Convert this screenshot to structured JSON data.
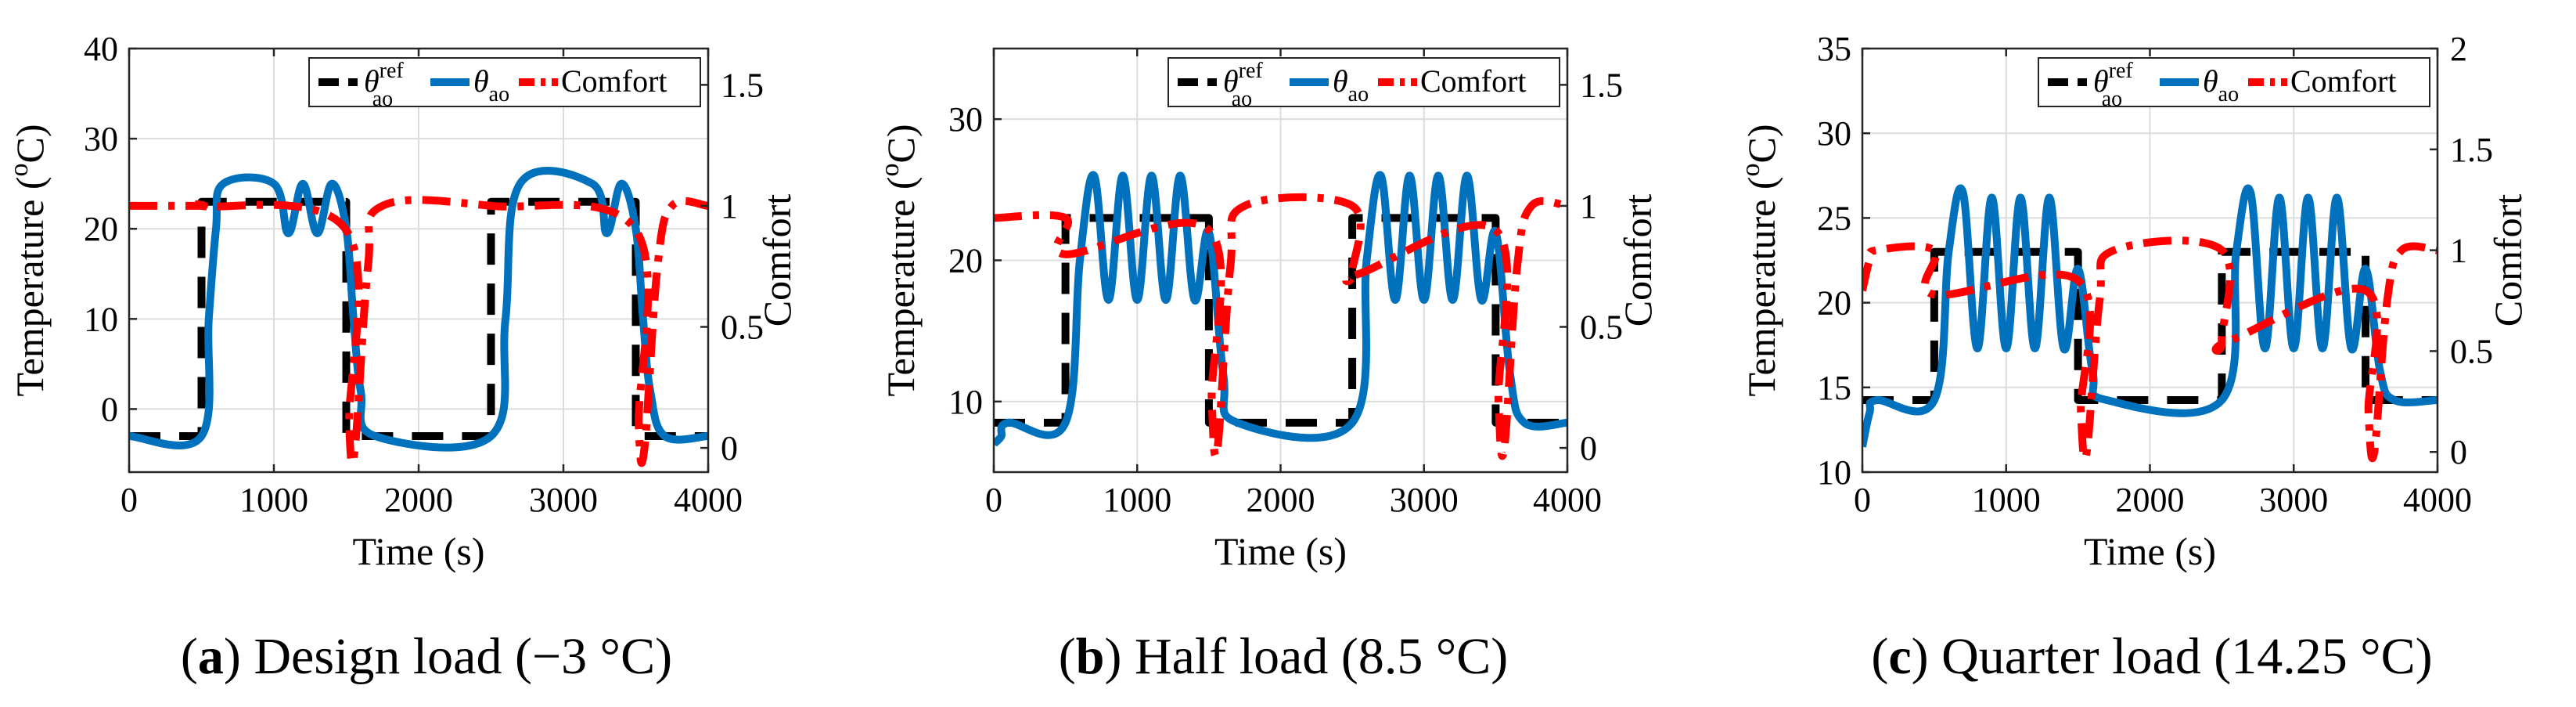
{
  "legend": {
    "ref_symbol": "θ",
    "ref_superscript": "ref",
    "ref_subscript": "ao",
    "ao_symbol": "θ",
    "ao_subscript": "ao",
    "comfort_label": "Comfort"
  },
  "colors": {
    "reference": "#000000",
    "temperature": "#0072BD",
    "comfort": "#FF0000",
    "grid": "#dcdcdc"
  },
  "chart_data": [
    {
      "type": "line",
      "letter": "a",
      "caption": "Design load (−3 °C)",
      "xlabel": "Time (s)",
      "ylabel": "Temperature (°C)",
      "ylabel_left": "Temperature (",
      "ylabel_sup": "o",
      "ylabel_right": "C)",
      "y2label": "Comfort",
      "xlim": [
        0,
        4000
      ],
      "ylim": [
        -7,
        40
      ],
      "y2lim": [
        -0.1,
        1.65
      ],
      "xticks": [
        "0",
        "1000",
        "2000",
        "3000",
        "4000"
      ],
      "yticks": [
        "0",
        "10",
        "20",
        "30",
        "40"
      ],
      "y2ticks": [
        "0",
        "0.5",
        "1",
        "1.5"
      ],
      "setpoint_low": -3,
      "setpoint_high": 23,
      "overshoot_peak": 25.2,
      "oscillation_trough": 19.5,
      "comfort_dip_low": 0.78,
      "comfort_min": 0,
      "series": [
        {
          "name": "θ_ao^ref",
          "style": "dashed",
          "x": [
            0,
            500,
            500,
            1500,
            1500,
            2500,
            2500,
            3500,
            3500,
            4000
          ],
          "y": [
            -3,
            -3,
            23,
            23,
            -3,
            -3,
            23,
            23,
            -3,
            -3
          ]
        },
        {
          "name": "θ_ao",
          "style": "solid",
          "x": [
            0,
            500,
            550,
            600,
            650,
            1000,
            1100,
            1200,
            1300,
            1400,
            1500,
            1550,
            1600,
            1700,
            2500,
            2600,
            2700,
            3200,
            3300,
            3400,
            3500,
            3550,
            3600,
            3700,
            4000
          ],
          "y": [
            -3,
            -3,
            10,
            20,
            25,
            25,
            19.5,
            25,
            19.5,
            25,
            20,
            10,
            2,
            -3,
            -3,
            10,
            25,
            25,
            19.5,
            25,
            20,
            10,
            2,
            -3,
            -3
          ]
        },
        {
          "name": "Comfort",
          "style": "dashdot",
          "x": [
            0,
            500,
            500,
            1500,
            1520,
            1560,
            1650,
            1750,
            2500,
            3500,
            3520,
            3560,
            3650,
            3750,
            4000
          ],
          "y": [
            1,
            1,
            1,
            0.9,
            0.1,
            0,
            0.75,
            1,
            1,
            0.9,
            0.1,
            0,
            0.75,
            1,
            1
          ]
        }
      ]
    },
    {
      "type": "line",
      "letter": "b",
      "caption": "Half load (8.5 °C)",
      "xlabel": "Time (s)",
      "ylabel": "Temperature (°C)",
      "ylabel_left": "Temperature (",
      "ylabel_sup": "o",
      "ylabel_right": "C)",
      "y2label": "Comfort",
      "xlim": [
        0,
        4000
      ],
      "ylim": [
        5,
        35
      ],
      "y2lim": [
        -0.1,
        1.65
      ],
      "xticks": [
        "0",
        "1000",
        "2000",
        "3000",
        "4000"
      ],
      "yticks": [
        "10",
        "20",
        "30"
      ],
      "y2ticks": [
        "0",
        "0.5",
        "1",
        "1.5"
      ],
      "setpoint_low": 8.5,
      "setpoint_high": 23,
      "overshoot_peak": 26.2,
      "oscillation_trough": 17.2,
      "comfort_dip_low": 0.72,
      "comfort_min": 0,
      "series": [
        {
          "name": "θ_ao^ref",
          "style": "dashed",
          "x": [
            0,
            500,
            500,
            1500,
            1500,
            2500,
            2500,
            3500,
            3500,
            4000
          ],
          "y": [
            8.5,
            8.5,
            23,
            23,
            8.5,
            8.5,
            23,
            23,
            8.5,
            8.5
          ]
        },
        {
          "name": "θ_ao",
          "style": "solid",
          "x": [
            0,
            50,
            100,
            500,
            600,
            700,
            800,
            900,
            1000,
            1100,
            1200,
            1300,
            1400,
            1500,
            1600,
            1700,
            2500,
            2600,
            2700,
            2800,
            2900,
            3000,
            3100,
            3200,
            3300,
            3400,
            3500,
            3600,
            3700,
            4000
          ],
          "y": [
            7,
            7.5,
            8.5,
            8.5,
            20,
            26,
            17.2,
            26,
            17.2,
            26,
            17.2,
            26,
            17.2,
            22,
            12,
            8.5,
            8.5,
            20,
            26,
            17.2,
            26,
            17.2,
            26,
            17.2,
            26,
            17.2,
            22,
            12,
            8.5,
            8.5
          ]
        },
        {
          "name": "Comfort",
          "style": "dashdot",
          "x": [
            0,
            500,
            500,
            1500,
            1520,
            1560,
            1650,
            1750,
            2500,
            2500,
            2550,
            3500,
            3520,
            3560,
            3650,
            3750,
            4000
          ],
          "y": [
            0.95,
            0.95,
            0.8,
            0.9,
            0.2,
            0,
            0.75,
            1,
            1,
            0.72,
            0.72,
            0.9,
            0.2,
            0,
            0.75,
            1,
            1
          ]
        }
      ]
    },
    {
      "type": "line",
      "letter": "c",
      "caption": "Quarter load (14.25 °C)",
      "xlabel": "Time (s)",
      "ylabel": "Temperature (°C)",
      "ylabel_left": "Temperature (",
      "ylabel_sup": "o",
      "ylabel_right": "C)",
      "y2label": "Comfort",
      "xlim": [
        0,
        4000
      ],
      "ylim": [
        10,
        35
      ],
      "y2lim": [
        -0.1,
        2
      ],
      "xticks": [
        "0",
        "1000",
        "2000",
        "3000",
        "4000"
      ],
      "yticks": [
        "10",
        "15",
        "20",
        "25",
        "30",
        "35"
      ],
      "y2ticks": [
        "0",
        "0.5",
        "1",
        "1.5",
        "2"
      ],
      "setpoint_low": 14.25,
      "setpoint_high": 23,
      "overshoot_peak": 26.5,
      "oscillation_trough": 17.3,
      "comfort_dip_low": 0.75,
      "comfort_min": 0,
      "series": [
        {
          "name": "θ_ao^ref",
          "style": "dashed",
          "x": [
            0,
            500,
            500,
            1500,
            1500,
            2500,
            2500,
            3500,
            3500,
            4000
          ],
          "y": [
            14.25,
            14.25,
            23,
            23,
            14.25,
            14.25,
            23,
            23,
            14.25,
            14.25
          ]
        },
        {
          "name": "θ_ao",
          "style": "solid",
          "x": [
            0,
            50,
            100,
            500,
            600,
            700,
            800,
            900,
            1000,
            1100,
            1200,
            1300,
            1400,
            1500,
            1600,
            1700,
            2500,
            2600,
            2700,
            2800,
            2900,
            3000,
            3100,
            3200,
            3300,
            3400,
            3500,
            3600,
            3700,
            4000
          ],
          "y": [
            11.5,
            13.5,
            14.25,
            14.25,
            23,
            26.5,
            17.3,
            26.2,
            17.3,
            26.2,
            17.3,
            26.2,
            17.3,
            22,
            16,
            14.25,
            14.25,
            23,
            26.5,
            17.3,
            26.2,
            17.3,
            26.2,
            17.3,
            26.2,
            17.3,
            22,
            16,
            14.25,
            14.25
          ]
        },
        {
          "name": "Comfort",
          "style": "dashdot",
          "x": [
            0,
            50,
            100,
            500,
            500,
            1500,
            1520,
            1560,
            1650,
            1750,
            2500,
            2500,
            2550,
            3500,
            3520,
            3560,
            3650,
            3750,
            4000
          ],
          "y": [
            0.8,
            0.95,
            1,
            1,
            0.78,
            0.85,
            0.2,
            0,
            0.75,
            1,
            1,
            0.55,
            0.55,
            0.8,
            0.2,
            0,
            0.75,
            1,
            1
          ]
        }
      ]
    }
  ]
}
